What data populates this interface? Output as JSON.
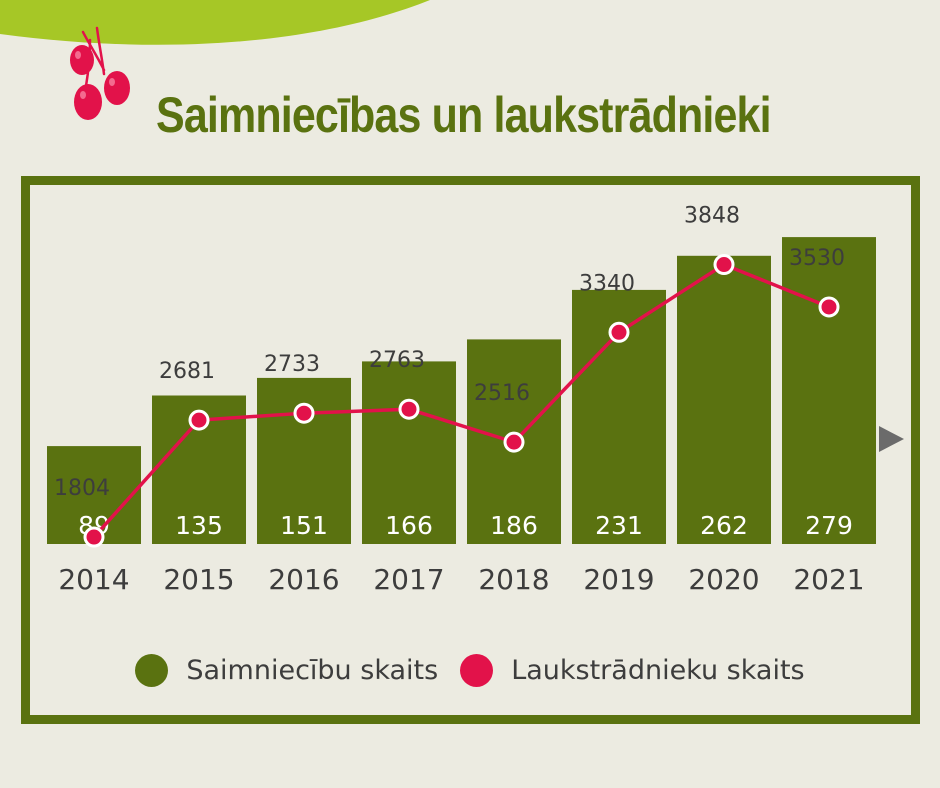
{
  "header": {
    "title": "Saimniecības un laukstrādnieki"
  },
  "colors": {
    "bar": "#5a7210",
    "line": "#e2124a",
    "background": "#ecebe1",
    "top_wave": "#a6c726",
    "text": "#3d3d3d"
  },
  "decoration": {
    "icon": "red-berries-icon",
    "arrow": "gray-right-arrow-icon"
  },
  "chart_data": {
    "type": "bar",
    "categories": [
      "2014",
      "2015",
      "2016",
      "2017",
      "2018",
      "2019",
      "2020",
      "2021"
    ],
    "series": [
      {
        "name": "Saimniecību skaits",
        "type": "bar",
        "color": "#5a7210",
        "values": [
          89,
          135,
          151,
          166,
          186,
          231,
          262,
          279
        ]
      },
      {
        "name": "Laukstrādnieku skaits",
        "type": "line",
        "color": "#e2124a",
        "values": [
          1804,
          2681,
          2733,
          2763,
          2516,
          3340,
          3848,
          3530
        ]
      }
    ],
    "title": "Saimniecības un laukstrādnieki",
    "legend": "bottom",
    "grid": false
  },
  "legend": {
    "items": [
      {
        "label": "Saimniecību skaits",
        "color": "#5a7210"
      },
      {
        "label": "Laukstrādnieku skaits",
        "color": "#e2124a"
      }
    ]
  }
}
